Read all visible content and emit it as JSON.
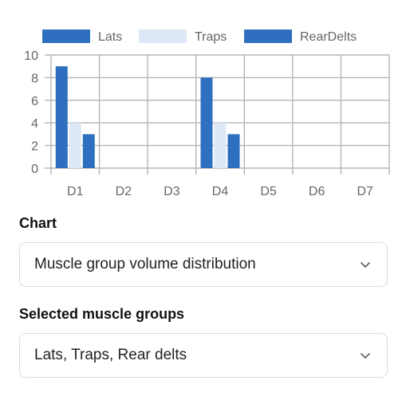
{
  "chart_data": {
    "type": "bar",
    "categories": [
      "D1",
      "D2",
      "D3",
      "D4",
      "D5",
      "D6",
      "D7"
    ],
    "series": [
      {
        "name": "Lats",
        "values": [
          9,
          0,
          0,
          8,
          0,
          0,
          0
        ],
        "color": "#2f6fc0"
      },
      {
        "name": "Traps",
        "values": [
          4,
          0,
          0,
          4,
          0,
          0,
          0
        ],
        "color": "#dde8f7"
      },
      {
        "name": "RearDelts",
        "values": [
          3,
          0,
          0,
          3,
          0,
          0,
          0
        ],
        "color": "#2f6fc0"
      }
    ],
    "yticks": [
      0,
      2,
      4,
      6,
      8,
      10
    ],
    "ylim": [
      0,
      10
    ],
    "grid": true,
    "legend": "top"
  },
  "controls": {
    "chart_label": "Chart",
    "chart_value": "Muscle group volume distribution",
    "groups_label": "Selected muscle groups",
    "groups_value": "Lats, Traps, Rear delts"
  },
  "colors": {
    "grid": "#b5b5b5",
    "axis": "#888888"
  }
}
